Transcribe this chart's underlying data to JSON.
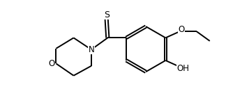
{
  "bg_color": "#ffffff",
  "line_color": "#000000",
  "line_width": 1.4,
  "text_color": "#000000",
  "font_size": 8.5,
  "figsize": [
    3.24,
    1.38
  ],
  "dpi": 100,
  "xlim": [
    0,
    9.5
  ],
  "ylim": [
    0,
    4.2
  ]
}
